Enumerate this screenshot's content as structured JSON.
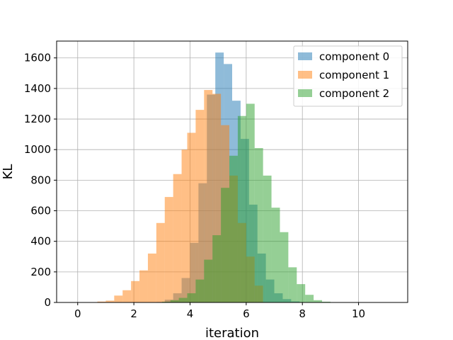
{
  "chart_data": {
    "type": "histogram",
    "xlabel": "iteration",
    "ylabel": "KL",
    "xlim": [
      -0.75,
      11.75
    ],
    "ylim": [
      0,
      1710
    ],
    "xticks": [
      0,
      2,
      4,
      6,
      8,
      10
    ],
    "yticks": [
      0,
      200,
      400,
      600,
      800,
      1000,
      1200,
      1400,
      1600
    ],
    "grid": true,
    "legend_position": "top-right",
    "bar_opacity": 0.5,
    "series": [
      {
        "name": "component 0",
        "color": "#1f77b4",
        "bin_edges": [
          2.8,
          3.1,
          3.4,
          3.7,
          4.0,
          4.3,
          4.6,
          4.9,
          5.2,
          5.5,
          5.8,
          6.1,
          6.4,
          6.7,
          7.0,
          7.3,
          7.6,
          7.9,
          8.2
        ],
        "counts": [
          3,
          18,
          60,
          160,
          390,
          780,
          1360,
          1635,
          1560,
          1320,
          1070,
          640,
          320,
          150,
          60,
          22,
          7,
          2
        ]
      },
      {
        "name": "component 1",
        "color": "#ff7f0e",
        "bin_edges": [
          0.7,
          1.0,
          1.3,
          1.6,
          1.9,
          2.2,
          2.5,
          2.8,
          3.1,
          3.4,
          3.7,
          3.9,
          4.2,
          4.5,
          4.8,
          5.1,
          5.4,
          5.7,
          6.0,
          6.3,
          6.6
        ],
        "counts": [
          6,
          12,
          45,
          80,
          140,
          210,
          320,
          520,
          690,
          840,
          1000,
          1110,
          1260,
          1390,
          1365,
          1160,
          830,
          520,
          300,
          110
        ]
      },
      {
        "name": "component 2",
        "color": "#2ca02c",
        "bin_edges": [
          3.0,
          3.3,
          3.6,
          3.9,
          4.2,
          4.5,
          4.8,
          5.1,
          5.4,
          5.7,
          6.0,
          6.3,
          6.6,
          6.9,
          7.2,
          7.5,
          7.8,
          8.1,
          8.4,
          8.7,
          9.0
        ],
        "counts": [
          5,
          15,
          30,
          60,
          150,
          280,
          440,
          750,
          960,
          1220,
          1300,
          1010,
          830,
          620,
          460,
          230,
          120,
          50,
          15,
          5
        ]
      }
    ]
  }
}
